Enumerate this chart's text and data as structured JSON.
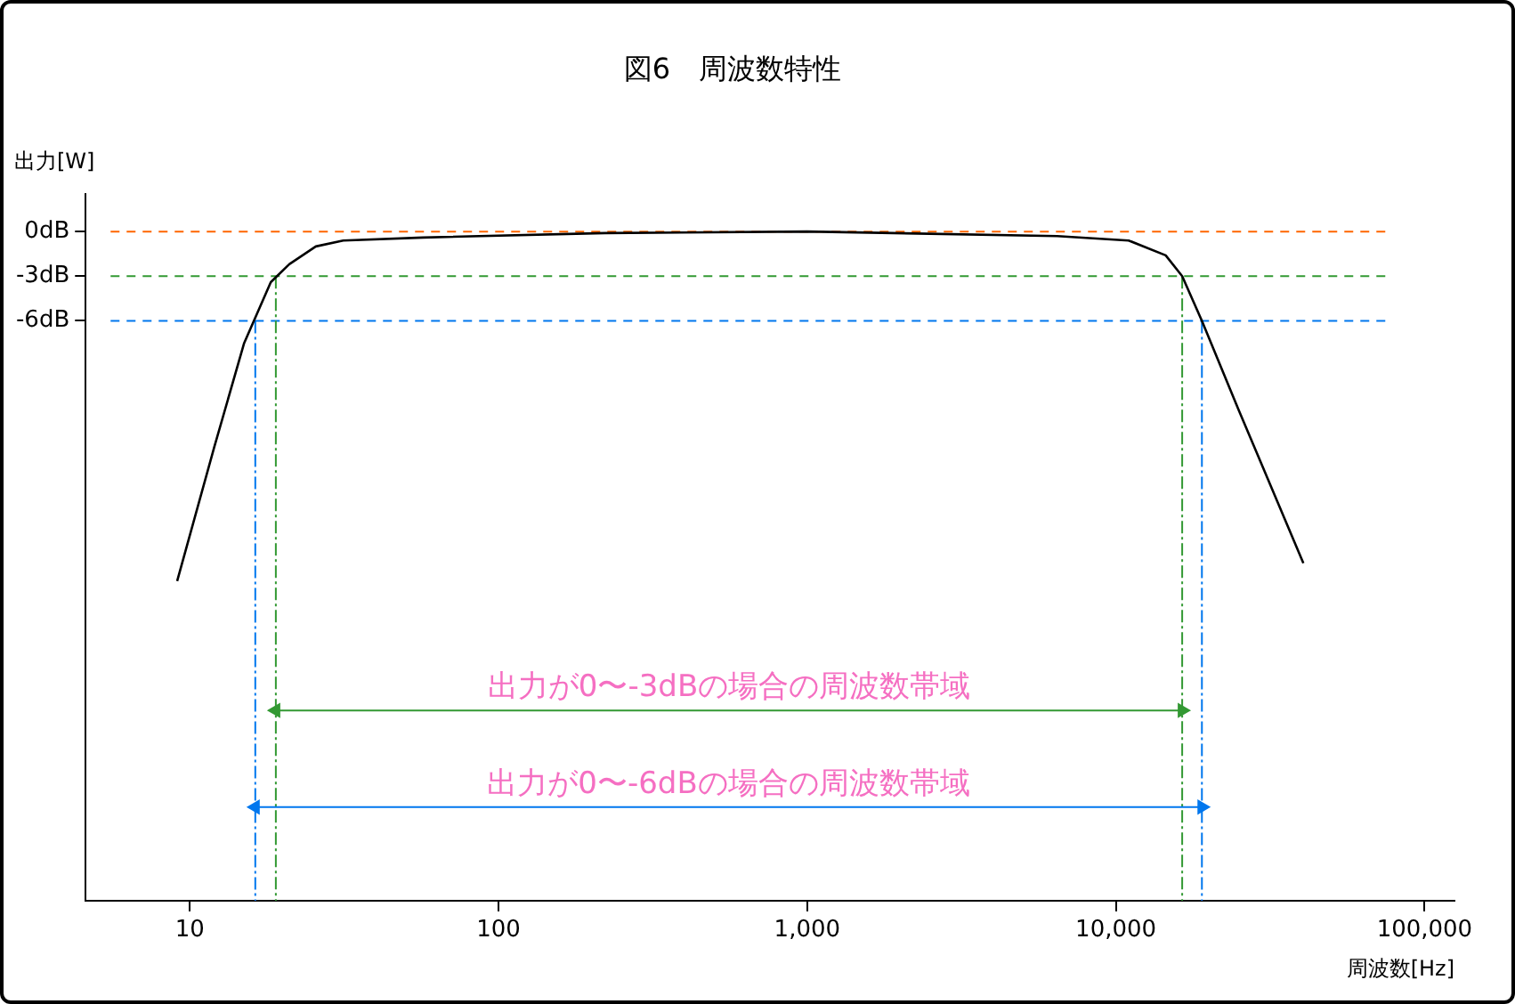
{
  "chart_data": {
    "type": "line",
    "title": "図6　周波数特性",
    "xlabel": "周波数[Hz]",
    "ylabel": "出力[W]",
    "log": "x",
    "grid": false,
    "legend": false,
    "marker": "none",
    "line_style": "solid",
    "xlim": [
      4.6,
      125000
    ],
    "xticks": [
      {
        "value": 10,
        "label": "10"
      },
      {
        "value": 100,
        "label": "100"
      },
      {
        "value": 1000,
        "label": "1,000"
      },
      {
        "value": 10000,
        "label": "10,000"
      },
      {
        "value": 100000,
        "label": "100,000"
      }
    ],
    "ylim": [
      -45,
      2.5
    ],
    "yticks": [
      {
        "value": -6,
        "label": "-6dB"
      },
      {
        "value": -3,
        "label": "-3dB"
      },
      {
        "value": 0,
        "label": "0dB"
      }
    ],
    "series": [
      {
        "color": "#000000",
        "x": [
          9.1,
          12,
          15,
          18.3,
          21,
          25.6,
          31.4,
          57,
          221,
          1000,
          6460,
          11000,
          14500,
          16400,
          19000,
          25000,
          40500
        ],
        "values": [
          -23.5,
          -14.5,
          -7.5,
          -3.4,
          -2.2,
          -1,
          -0.6,
          -0.4,
          -0.1,
          0,
          -0.3,
          -0.6,
          -1.6,
          -3,
          -6,
          -12,
          -22.3
        ]
      },
      {
        "color": "#339933",
        "marker": "triangle",
        "x": [
          19,
          16400
        ],
        "values": [
          -32.2,
          -32.2
        ]
      },
      {
        "color": "#0077ee",
        "marker": "triangle",
        "x": [
          16.3,
          19000
        ],
        "values": [
          -38.7,
          -38.7
        ]
      }
    ],
    "ref_lines": [
      {
        "axis": "y",
        "value": 0,
        "color": "#ff6600",
        "line_style": "dashed"
      },
      {
        "axis": "y",
        "value": -3,
        "color": "#339933",
        "line_style": "dashed"
      },
      {
        "axis": "y",
        "value": -6,
        "color": "#0077ee",
        "line_style": "dashed"
      },
      {
        "axis": "x",
        "value": 19,
        "color": "#339933",
        "line_style": "dashed"
      },
      {
        "axis": "x",
        "value": 16400,
        "color": "#339933",
        "line_style": "dashed"
      },
      {
        "axis": "x",
        "value": 16.3,
        "color": "#0077ee",
        "line_style": "dashed"
      },
      {
        "axis": "x",
        "value": 19000,
        "color": "#0077ee",
        "line_style": "dashed"
      }
    ],
    "annotations": [
      "出力が0〜-3dBの場合の周波数帯域",
      "出力が0〜-6dBの場合の周波数帯域"
    ]
  }
}
